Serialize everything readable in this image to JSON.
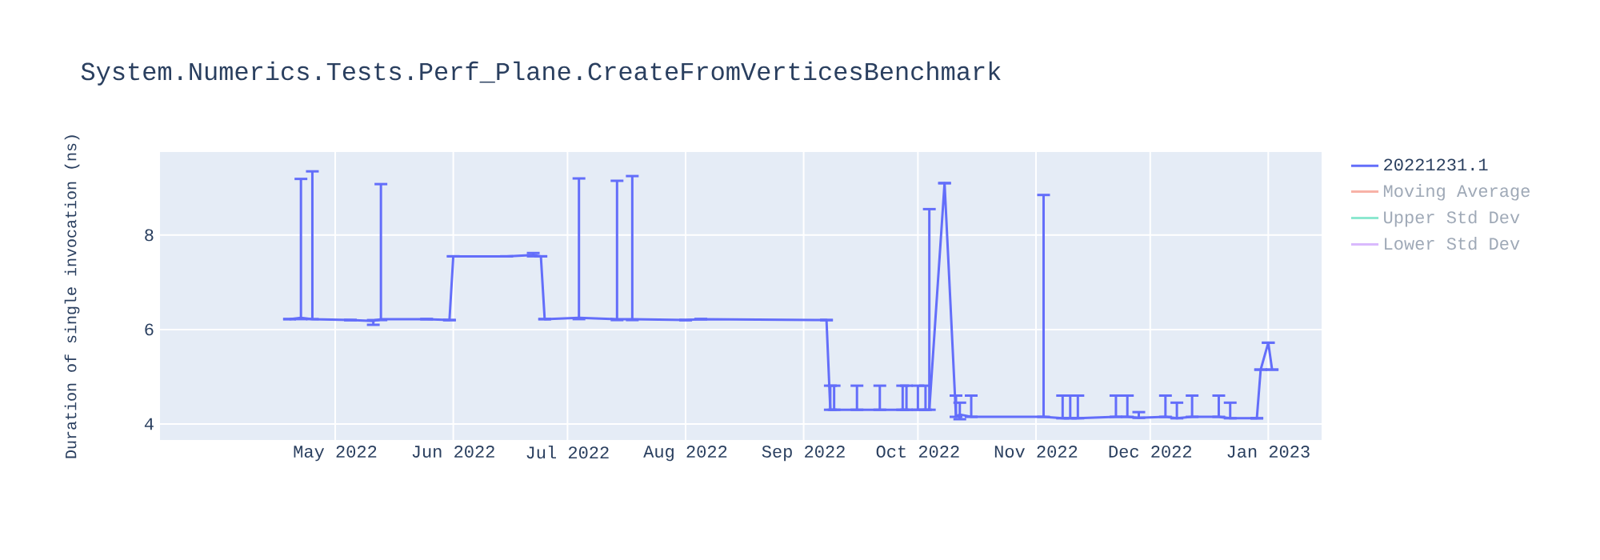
{
  "chart_data": {
    "type": "line",
    "title": "System.Numerics.Tests.Perf_Plane.CreateFromVerticesBenchmark",
    "ylabel": "Duration of single invocation (ns)",
    "xlim": [
      "2022-03-16",
      "2023-01-15"
    ],
    "ylim": [
      3.66,
      9.76
    ],
    "yticks": [
      4,
      6,
      8
    ],
    "xticks": [
      {
        "value": "2022-05-01",
        "label": "May 2022"
      },
      {
        "value": "2022-06-01",
        "label": "Jun 2022"
      },
      {
        "value": "2022-07-01",
        "label": "Jul 2022"
      },
      {
        "value": "2022-08-01",
        "label": "Aug 2022"
      },
      {
        "value": "2022-09-01",
        "label": "Sep 2022"
      },
      {
        "value": "2022-10-01",
        "label": "Oct 2022"
      },
      {
        "value": "2022-11-01",
        "label": "Nov 2022"
      },
      {
        "value": "2022-12-01",
        "label": "Dec 2022"
      },
      {
        "value": "2023-01-01",
        "label": "Jan 2023"
      }
    ],
    "grid": true,
    "legend": "top right",
    "marker": "none",
    "line_style": "solid",
    "series": [
      {
        "name": "20221231.1",
        "color": "#636efa",
        "x": [
          "2022-04-19",
          "2022-04-22",
          "2022-04-25",
          "2022-05-05",
          "2022-05-11",
          "2022-05-13",
          "2022-05-25",
          "2022-05-31",
          "2022-06-01",
          "2022-06-15",
          "2022-06-22",
          "2022-06-24",
          "2022-06-25",
          "2022-07-04",
          "2022-07-14",
          "2022-07-18",
          "2022-08-01",
          "2022-08-05",
          "2022-09-07",
          "2022-09-08",
          "2022-09-09",
          "2022-09-15",
          "2022-09-21",
          "2022-09-27",
          "2022-09-28",
          "2022-10-01",
          "2022-10-03",
          "2022-10-04",
          "2022-10-08",
          "2022-10-11",
          "2022-10-12",
          "2022-10-15",
          "2022-11-03",
          "2022-11-08",
          "2022-11-10",
          "2022-11-12",
          "2022-11-22",
          "2022-11-25",
          "2022-11-28",
          "2022-12-05",
          "2022-12-08",
          "2022-12-12",
          "2022-12-19",
          "2022-12-22",
          "2022-12-29",
          "2022-12-30",
          "2023-01-01",
          "2023-01-02"
        ],
        "values": [
          6.22,
          6.25,
          6.22,
          6.2,
          6.18,
          6.22,
          6.22,
          6.2,
          7.55,
          7.55,
          7.58,
          7.55,
          6.22,
          6.25,
          6.22,
          6.22,
          6.2,
          6.22,
          6.2,
          4.3,
          4.3,
          4.3,
          4.3,
          4.3,
          4.3,
          4.3,
          4.3,
          4.3,
          9.1,
          4.15,
          4.2,
          4.15,
          4.15,
          4.12,
          4.12,
          4.12,
          4.15,
          4.15,
          4.13,
          4.15,
          4.12,
          4.15,
          4.15,
          4.12,
          4.12,
          5.15,
          5.72,
          5.15
        ],
        "errors": [
          null,
          [
            6.22,
            9.19
          ],
          [
            6.22,
            9.35
          ],
          null,
          [
            6.1,
            6.2
          ],
          [
            6.2,
            9.08
          ],
          null,
          null,
          null,
          null,
          [
            7.55,
            7.62
          ],
          null,
          null,
          [
            6.22,
            9.2
          ],
          [
            6.2,
            9.15
          ],
          [
            6.2,
            9.25
          ],
          null,
          null,
          null,
          [
            4.3,
            4.81
          ],
          [
            4.3,
            4.81
          ],
          [
            4.3,
            4.81
          ],
          [
            4.3,
            4.81
          ],
          [
            4.3,
            4.81
          ],
          [
            4.3,
            4.81
          ],
          [
            4.3,
            4.81
          ],
          [
            4.3,
            4.81
          ],
          [
            4.3,
            8.55
          ],
          null,
          [
            4.15,
            4.6
          ],
          [
            4.1,
            4.45
          ],
          [
            4.15,
            4.6
          ],
          [
            4.15,
            8.85
          ],
          [
            4.12,
            4.6
          ],
          [
            4.12,
            4.6
          ],
          [
            4.12,
            4.6
          ],
          [
            4.15,
            4.6
          ],
          [
            4.15,
            4.6
          ],
          [
            4.13,
            4.25
          ],
          [
            4.15,
            4.6
          ],
          [
            4.12,
            4.45
          ],
          [
            4.15,
            4.6
          ],
          [
            4.15,
            4.6
          ],
          [
            4.12,
            4.45
          ],
          null,
          null,
          null,
          null
        ]
      },
      {
        "name": "Moving Average",
        "color": "#f8b2a7"
      },
      {
        "name": "Upper Std Dev",
        "color": "#8ce8d0"
      },
      {
        "name": "Lower Std Dev",
        "color": "#d9b9fd"
      }
    ]
  }
}
